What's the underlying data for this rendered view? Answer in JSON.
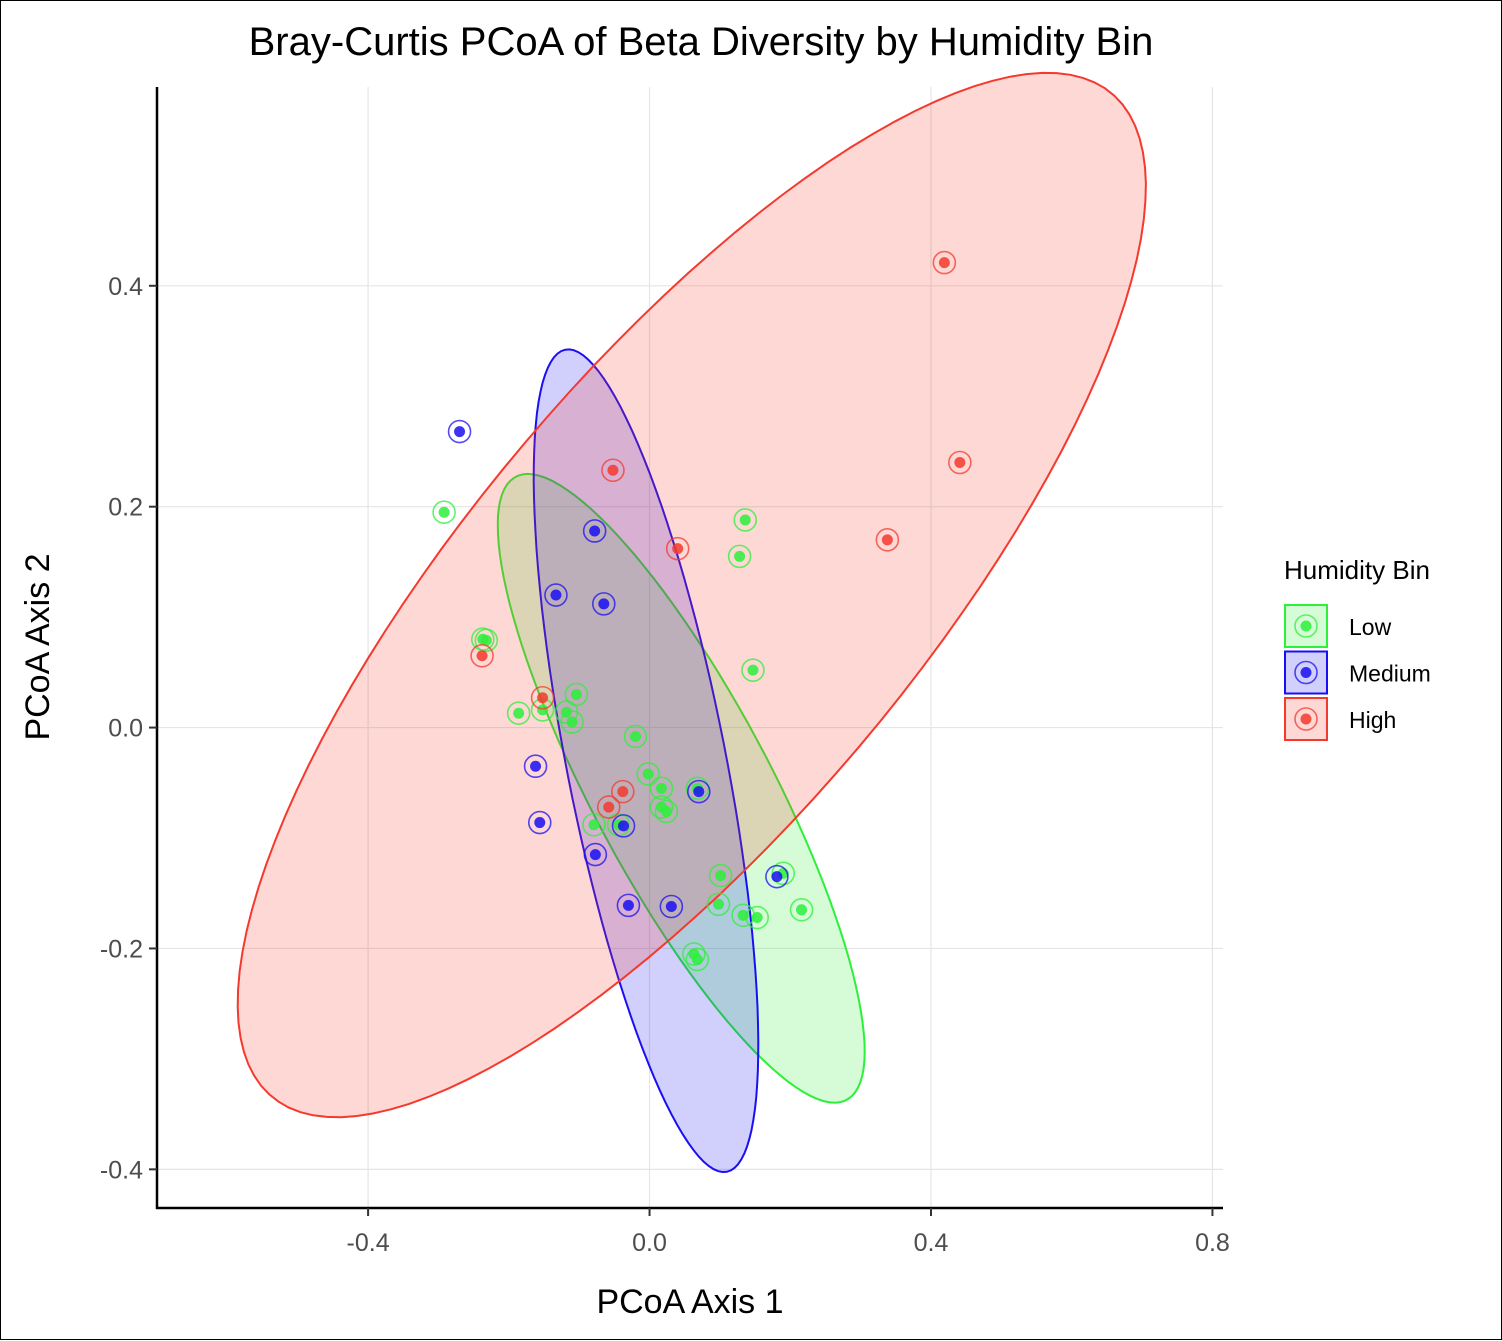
{
  "chart_data": {
    "type": "scatter",
    "title": "Bray-Curtis PCoA of Beta Diversity by Humidity Bin",
    "xlabel": "PCoA Axis 1",
    "ylabel": "PCoA Axis 2",
    "xlim": [
      -0.7,
      0.815
    ],
    "ylim": [
      -0.435,
      0.58
    ],
    "x_ticks": [
      -0.4,
      0.0,
      0.4,
      0.8
    ],
    "x_tick_labels": [
      "-0.4",
      "0.0",
      "0.4",
      "0.8"
    ],
    "y_ticks": [
      -0.4,
      -0.2,
      0.0,
      0.2,
      0.4
    ],
    "y_tick_labels": [
      "-0.4",
      "-0.2",
      "0.0",
      "0.2",
      "0.4"
    ],
    "grid": true,
    "legend": {
      "title": "Humidity Bin",
      "position": "right"
    },
    "series": [
      {
        "name": "Low",
        "color": "#2cf039",
        "points": [
          [
            -0.292,
            0.195
          ],
          [
            -0.237,
            0.08
          ],
          [
            -0.232,
            0.079
          ],
          [
            -0.186,
            0.013
          ],
          [
            -0.152,
            0.016
          ],
          [
            -0.118,
            0.014
          ],
          [
            -0.11,
            0.005
          ],
          [
            -0.104,
            0.03
          ],
          [
            -0.079,
            -0.088
          ],
          [
            -0.044,
            -0.088
          ],
          [
            -0.02,
            -0.008
          ],
          [
            -0.002,
            -0.042
          ],
          [
            0.017,
            -0.055
          ],
          [
            0.017,
            -0.072
          ],
          [
            0.024,
            -0.076
          ],
          [
            0.068,
            -0.055
          ],
          [
            0.128,
            0.155
          ],
          [
            0.136,
            0.188
          ],
          [
            0.147,
            0.052
          ],
          [
            0.101,
            -0.134
          ],
          [
            0.098,
            -0.16
          ],
          [
            0.133,
            -0.17
          ],
          [
            0.153,
            -0.172
          ],
          [
            0.19,
            -0.132
          ],
          [
            0.216,
            -0.165
          ],
          [
            0.063,
            -0.205
          ],
          [
            0.068,
            -0.21
          ]
        ],
        "ellipse": {
          "center": [
            0.045,
            -0.055
          ],
          "semi_axes": [
            0.37,
            0.11
          ],
          "angle_deg": -48
        }
      },
      {
        "name": "Medium",
        "color": "#1a0ff2",
        "points": [
          [
            -0.27,
            0.268
          ],
          [
            -0.078,
            0.178
          ],
          [
            -0.133,
            0.12
          ],
          [
            -0.065,
            0.112
          ],
          [
            -0.162,
            -0.035
          ],
          [
            -0.156,
            -0.086
          ],
          [
            -0.077,
            -0.115
          ],
          [
            -0.037,
            -0.089
          ],
          [
            -0.03,
            -0.161
          ],
          [
            0.07,
            -0.058
          ],
          [
            0.031,
            -0.162
          ],
          [
            0.181,
            -0.135
          ]
        ],
        "ellipse": {
          "center": [
            -0.005,
            -0.03
          ],
          "semi_axes": [
            0.39,
            0.11
          ],
          "angle_deg": -72
        }
      },
      {
        "name": "High",
        "color": "#f43a2e",
        "points": [
          [
            0.419,
            0.421
          ],
          [
            0.441,
            0.24
          ],
          [
            0.338,
            0.17
          ],
          [
            -0.052,
            0.233
          ],
          [
            0.04,
            0.162
          ],
          [
            -0.238,
            0.065
          ],
          [
            -0.152,
            0.027
          ],
          [
            -0.058,
            -0.072
          ],
          [
            -0.038,
            -0.058
          ]
        ],
        "ellipse": {
          "center": [
            0.06,
            0.12
          ],
          "semi_axes": [
            0.76,
            0.25
          ],
          "angle_deg": 34
        }
      }
    ]
  }
}
